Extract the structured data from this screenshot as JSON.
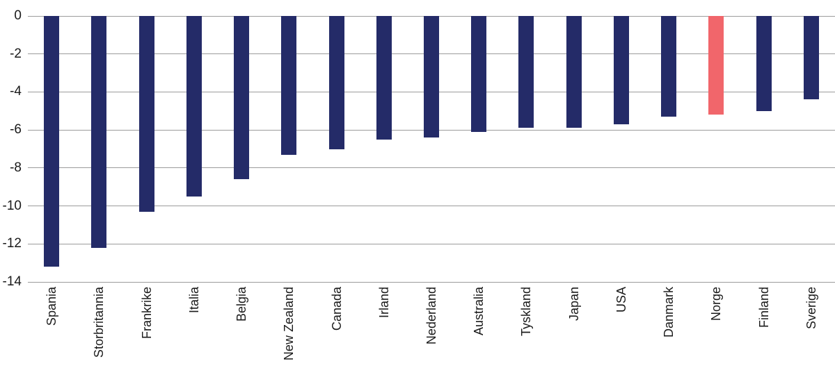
{
  "chart_data": {
    "type": "bar",
    "categories": [
      "Spania",
      "Storbritannia",
      "Frankrike",
      "Italia",
      "Belgia",
      "New Zealand",
      "Canada",
      "Irland",
      "Nederland",
      "Australia",
      "Tyskland",
      "Japan",
      "USA",
      "Danmark",
      "Norge",
      "Finland",
      "Sverige"
    ],
    "values": [
      -13.2,
      -12.2,
      -10.3,
      -9.5,
      -8.6,
      -7.3,
      -7.0,
      -6.5,
      -6.4,
      -6.1,
      -5.9,
      -5.9,
      -5.7,
      -5.3,
      -5.2,
      -5.0,
      -4.4
    ],
    "highlight_category": "Norge",
    "yticks": [
      0,
      -2,
      -4,
      -6,
      -8,
      -10,
      -12,
      -14
    ],
    "ytick_labels": [
      "0",
      "-2",
      "-4",
      "-6",
      "-8",
      "-10",
      "-12",
      "-14"
    ],
    "ylim": [
      -14,
      0
    ],
    "grid": true,
    "legend": "none",
    "colors": {
      "bar": "#242B68",
      "highlight": "#F1666B",
      "gridline": "#9B9B9B",
      "text": "#1A1A1A",
      "background": "#FFFFFF"
    }
  }
}
